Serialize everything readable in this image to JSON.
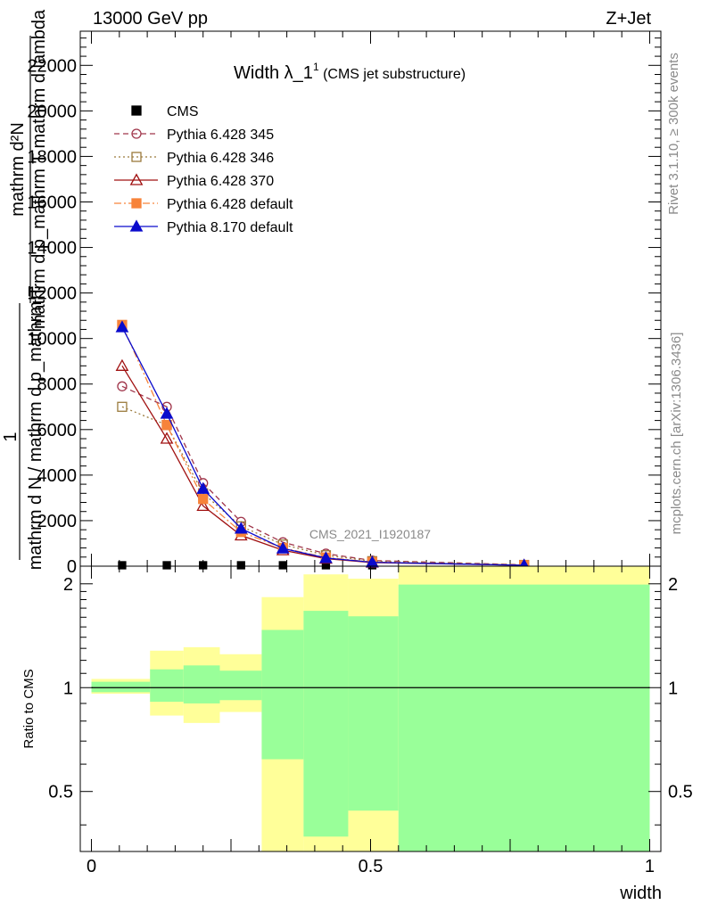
{
  "header": {
    "left": "13000 GeV pp",
    "right": "Z+Jet"
  },
  "side_labels": {
    "rivet": "Rivet 3.1.10, ≥ 300k events",
    "mcplots": "mcplots.cern.ch [arXiv:1306.3436]"
  },
  "watermark": "CMS_2021_I1920187",
  "colors": {
    "cms": "#000000",
    "p345": "#a0364b",
    "p346": "#9a7a3c",
    "p370": "#a01010",
    "p6def": "#f7833a",
    "p8def": "#0a0acc",
    "band_outer": "#ffff99",
    "band_inner": "#99ff99"
  },
  "chart_data": [
    {
      "type": "line",
      "title": "Width λ_1",
      "title_sup": "1",
      "title_suffix": " (CMS jet substructure)",
      "ylabel_lines": [
        "mathrm d N",
        "mathrm d p_mathrm T mathrm d lambda",
        "mathrm d²N",
        "mathrm d p_mathrm T mathrm d lambda",
        "1",
        "mathrm d N / mathrm d p_mathrm T"
      ],
      "ylabel_one": "1",
      "ylabel_num": "mathrm d²N",
      "ylabel_den": "mathrm d p_mathrm T mathrm d lambda",
      "ylabel_den2": "mathrm d N / mathrm d p_mathrm T",
      "xlim": [
        -0.02,
        1.02
      ],
      "ylim": [
        0,
        23500
      ],
      "yticks": [
        0,
        2000,
        4000,
        6000,
        8000,
        10000,
        12000,
        14000,
        16000,
        18000,
        20000,
        22000
      ],
      "ytick_labels": [
        "0",
        "2000",
        "4000",
        "6000",
        "8000",
        "10000",
        "12000",
        "14000",
        "16000",
        "18000",
        "20000",
        "22000"
      ],
      "x": [
        0.055,
        0.135,
        0.2,
        0.268,
        0.343,
        0.42,
        0.503,
        0.775
      ],
      "series": [
        {
          "name": "CMS",
          "key": "cms",
          "marker": "square",
          "dash": "",
          "values": [
            40,
            40,
            40,
            40,
            40,
            40,
            40,
            40
          ]
        },
        {
          "name": "Pythia 6.428 345",
          "key": "p345",
          "marker": "circle-open",
          "dash": "6,4",
          "values": [
            7900,
            7000,
            3650,
            1950,
            1050,
            550,
            250,
            60
          ]
        },
        {
          "name": "Pythia 6.428 346",
          "key": "p346",
          "marker": "square-open",
          "dash": "2,3",
          "values": [
            7000,
            6200,
            3200,
            1750,
            950,
            480,
            220,
            55
          ]
        },
        {
          "name": "Pythia 6.428 370",
          "key": "p370",
          "marker": "triangle-open",
          "dash": "",
          "values": [
            8800,
            5600,
            2650,
            1350,
            700,
            330,
            160,
            40
          ]
        },
        {
          "name": "Pythia 6.428 default",
          "key": "p6def",
          "marker": "square",
          "dash": "8,3,2,3",
          "values": [
            10600,
            6200,
            2950,
            1500,
            800,
            380,
            180,
            45
          ]
        },
        {
          "name": "Pythia 8.170 default",
          "key": "p8def",
          "marker": "triangle",
          "dash": "",
          "values": [
            10500,
            6700,
            3400,
            1650,
            780,
            360,
            170,
            40
          ]
        }
      ]
    },
    {
      "type": "area",
      "title": "",
      "ylabel": "Ratio to CMS",
      "xlabel": "width",
      "xlim": [
        -0.02,
        1.02
      ],
      "ylim": [
        0.335,
        2.25
      ],
      "yscale": "log",
      "yticks": [
        0.5,
        1,
        2
      ],
      "ytick_labels": [
        "0.5",
        "1",
        "2"
      ],
      "xticks": [
        0,
        0.5,
        1
      ],
      "xtick_labels": [
        "0",
        "0.5",
        "1"
      ],
      "reference": 1,
      "bins": [
        0,
        0.105,
        0.165,
        0.23,
        0.305,
        0.38,
        0.46,
        0.55,
        1.0
      ],
      "outer_low": [
        0.96,
        0.83,
        0.79,
        0.85,
        0.335,
        0.335,
        0.335,
        0.335
      ],
      "outer_high": [
        1.06,
        1.28,
        1.31,
        1.25,
        1.83,
        2.13,
        2.07,
        2.3
      ],
      "inner_low": [
        0.97,
        0.91,
        0.9,
        0.92,
        0.62,
        0.37,
        0.44,
        0.335
      ],
      "inner_high": [
        1.04,
        1.13,
        1.16,
        1.12,
        1.47,
        1.67,
        1.61,
        1.99
      ]
    }
  ]
}
